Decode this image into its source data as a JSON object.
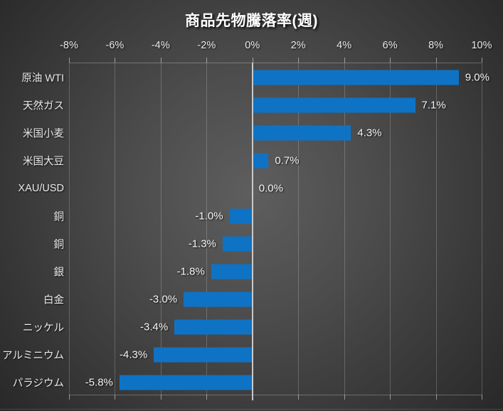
{
  "chart_data": {
    "type": "bar",
    "orientation": "horizontal",
    "title": "商品先物騰落率(週)",
    "categories": [
      "原油 WTI",
      "天然ガス",
      "米国小麦",
      "米国大豆",
      "XAU/USD",
      "銅",
      "銅",
      "銀",
      "白金",
      "ニッケル",
      "アルミニウム",
      "パラジウム"
    ],
    "values": [
      9.0,
      7.1,
      4.3,
      0.7,
      0.0,
      -1.0,
      -1.3,
      -1.8,
      -3.0,
      -3.4,
      -4.3,
      -5.8
    ],
    "value_labels": [
      "9.0%",
      "7.1%",
      "4.3%",
      "0.7%",
      "0.0%",
      "-1.0%",
      "-1.3%",
      "-1.8%",
      "-3.0%",
      "-3.4%",
      "-4.3%",
      "-5.8%"
    ],
    "x_tick_labels": [
      "-8%",
      "-6%",
      "-4%",
      "-2%",
      "0%",
      "2%",
      "4%",
      "6%",
      "8%",
      "10%"
    ],
    "x_tick_values": [
      -8,
      -6,
      -4,
      -2,
      0,
      2,
      4,
      6,
      8,
      10
    ],
    "xlim": [
      -8,
      10
    ],
    "grid": true,
    "legend": "none",
    "bar_color": "#0e73c5",
    "zero_line_color": "#c9c9c9",
    "title_color": "#ffffff",
    "label_color": "#eaeaea",
    "background_center_color": "#5e5e5e",
    "background_edge_color": "#242424"
  }
}
